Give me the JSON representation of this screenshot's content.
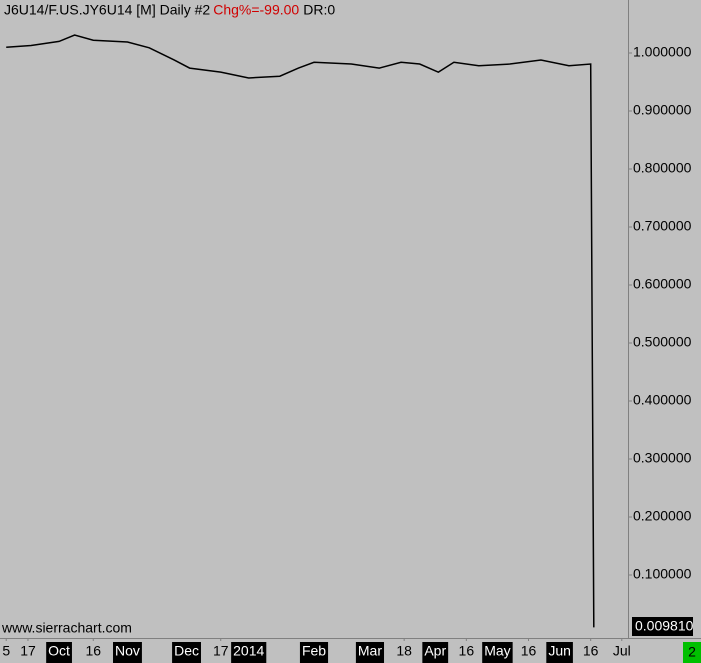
{
  "chart_data": {
    "type": "line",
    "title": "J6U14/F.US.JY6U14 [M]  Daily  #2",
    "change": "Chg%=-99.00",
    "dr": "DR:0",
    "watermark": "www.sierrachart.com",
    "chart_number": "2",
    "price_label": "0.009810",
    "x": [
      2,
      10,
      19,
      24,
      30,
      41,
      48,
      56,
      61,
      71,
      80,
      90,
      96,
      101,
      113,
      122,
      129,
      135,
      141,
      146,
      154,
      164,
      174,
      183,
      190,
      191
    ],
    "series": [
      {
        "name": "J6U14/F.US.JY6U14",
        "color": "#000000",
        "values": [
          1.01,
          1.013,
          1.02,
          1.031,
          1.022,
          1.019,
          1.009,
          0.988,
          0.974,
          0.967,
          0.957,
          0.96,
          0.974,
          0.984,
          0.981,
          0.974,
          0.984,
          0.981,
          0.967,
          0.984,
          0.978,
          0.981,
          0.988,
          0.978,
          0.981,
          0.00981
        ]
      }
    ],
    "xlim": [
      0,
      202
    ],
    "xticks": [
      {
        "value": 2,
        "label": "5"
      },
      {
        "value": 9,
        "label": "17"
      },
      {
        "value": 19,
        "label": "Oct",
        "boxed": true
      },
      {
        "value": 30,
        "label": "16"
      },
      {
        "value": 41,
        "label": "Nov",
        "boxed": true
      },
      {
        "value": 60,
        "label": "Dec",
        "boxed": true
      },
      {
        "value": 71,
        "label": "17"
      },
      {
        "value": 80,
        "label": "2014",
        "boxed": true
      },
      {
        "value": 101,
        "label": "Feb",
        "boxed": true
      },
      {
        "value": 119,
        "label": "Mar",
        "boxed": true
      },
      {
        "value": 130,
        "label": "18"
      },
      {
        "value": 140,
        "label": "Apr",
        "boxed": true
      },
      {
        "value": 150,
        "label": "16"
      },
      {
        "value": 160,
        "label": "May",
        "boxed": true
      },
      {
        "value": 170,
        "label": "16"
      },
      {
        "value": 180,
        "label": "Jun",
        "boxed": true
      },
      {
        "value": 190,
        "label": "16"
      },
      {
        "value": 200,
        "label": "Jul"
      }
    ],
    "ylim": [
      -0.0086,
      1.0914
    ],
    "yticks": [
      {
        "value": 0.1,
        "label": "0.100000"
      },
      {
        "value": 0.2,
        "label": "0.200000"
      },
      {
        "value": 0.3,
        "label": "0.300000"
      },
      {
        "value": 0.4,
        "label": "0.400000"
      },
      {
        "value": 0.5,
        "label": "0.500000"
      },
      {
        "value": 0.6,
        "label": "0.600000"
      },
      {
        "value": 0.7,
        "label": "0.700000"
      },
      {
        "value": 0.8,
        "label": "0.800000"
      },
      {
        "value": 0.9,
        "label": "0.900000"
      },
      {
        "value": 1.0,
        "label": "1.000000"
      }
    ],
    "grid": false
  }
}
